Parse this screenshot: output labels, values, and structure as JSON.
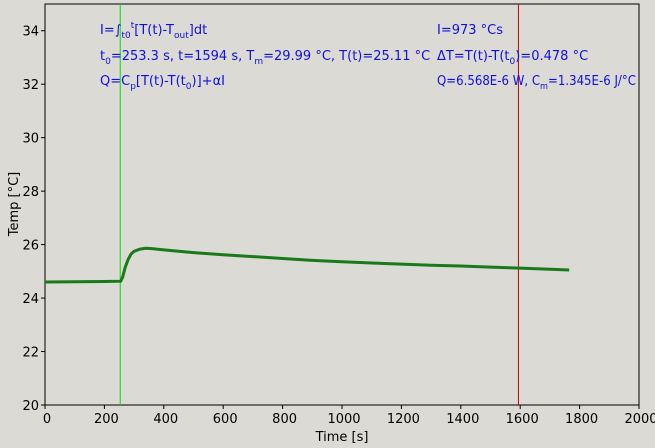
{
  "chart_data": {
    "type": "line",
    "xlabel": "Time [s]",
    "ylabel": "Temp [°C]",
    "xlim": [
      0,
      2000
    ],
    "ylim": [
      20,
      35
    ],
    "xticks": [
      0,
      200,
      400,
      600,
      800,
      1000,
      1200,
      1400,
      1600,
      1800,
      2000
    ],
    "yticks": [
      20,
      22,
      24,
      26,
      28,
      30,
      32,
      34
    ],
    "grid": false,
    "series": [
      {
        "color": "#1a7a1a",
        "x": [
          0,
          100,
          200,
          255,
          262,
          270,
          280,
          290,
          300,
          320,
          340,
          360,
          400,
          500,
          600,
          700,
          800,
          900,
          1000,
          1100,
          1200,
          1300,
          1400,
          1500,
          1600,
          1700,
          1765
        ],
        "y": [
          24.6,
          24.61,
          24.62,
          24.63,
          24.8,
          25.15,
          25.45,
          25.65,
          25.75,
          25.83,
          25.86,
          25.85,
          25.8,
          25.7,
          25.62,
          25.55,
          25.48,
          25.41,
          25.36,
          25.31,
          25.27,
          25.23,
          25.2,
          25.16,
          25.12,
          25.08,
          25.05
        ]
      }
    ],
    "markers": [
      {
        "name": "t0",
        "x": 253.3,
        "color": "#00e000"
      },
      {
        "name": "t",
        "x": 1594,
        "color": "#c00000"
      }
    ],
    "annotations": {
      "integral_formula": {
        "pre": "I=∫",
        "sub1": "t0",
        "sup1": "t",
        "post1": "[T(t)-T",
        "sub2": "out",
        "post2": "]dt"
      },
      "params_line": {
        "t0_label": "t",
        "t0_sub": "0",
        "t0_value": "=253.3 s,   t=1594 s,   T",
        "tm_sub": "m",
        "rest": "=29.99 °C,  T(t)=25.11 °C"
      },
      "q_formula": {
        "pre": "Q=C",
        "sub1": "p",
        "mid": "[T(t)-T(t",
        "sub2": "0",
        "post": ")]+αI"
      },
      "integral_value": "I=973 °Cs",
      "delta_t": {
        "pre": "ΔT=T(t)-T(t",
        "sub": "0",
        "post": ")=0.478 °C"
      },
      "q_value": {
        "pre": "Q=6.568E-6 W,   C",
        "sub": "m",
        "post": "=1.345E-6 J/°C"
      }
    }
  }
}
